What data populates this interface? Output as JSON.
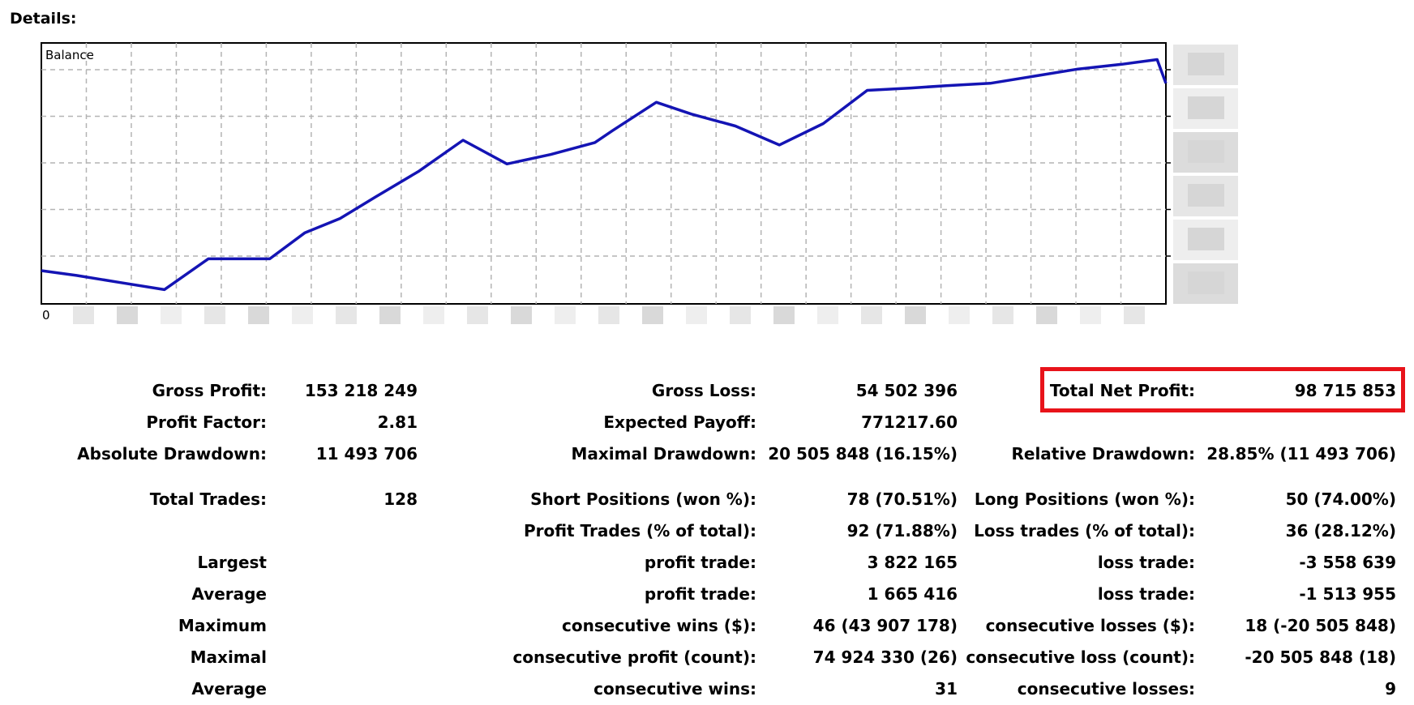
{
  "heading": "Details:",
  "chart_data": {
    "type": "line",
    "title": "Balance",
    "x_origin_label": "0",
    "axis_labels_obscured": true,
    "grid": true,
    "series": [
      {
        "name": "Balance",
        "color": "#1414b4",
        "x": [
          0,
          4,
          9,
          14,
          19,
          21,
          26,
          30,
          34,
          38,
          43,
          48,
          53,
          58,
          63,
          65,
          70,
          74,
          79,
          84,
          89,
          94,
          99,
          103,
          108,
          113,
          118,
          123,
          127,
          128
        ],
        "y": [
          4.4,
          4.2,
          3.9,
          3.6,
          4.9,
          4.9,
          4.9,
          6.0,
          6.6,
          7.5,
          8.6,
          9.9,
          8.9,
          9.3,
          9.8,
          10.3,
          11.5,
          11.0,
          10.5,
          9.7,
          10.6,
          12.0,
          12.1,
          12.2,
          12.3,
          12.6,
          12.9,
          13.1,
          13.3,
          12.3
        ]
      }
    ],
    "ylim": [
      3,
      14
    ]
  },
  "stats": {
    "gross_profit_label": "Gross Profit:",
    "gross_profit_value": "153 218 249",
    "gross_loss_label": "Gross Loss:",
    "gross_loss_value": "54 502 396",
    "total_net_profit_label": "Total Net Profit:",
    "total_net_profit_value": "98 715 853",
    "profit_factor_label": "Profit Factor:",
    "profit_factor_value": "2.81",
    "expected_payoff_label": "Expected Payoff:",
    "expected_payoff_value": "771217.60",
    "absolute_drawdown_label": "Absolute Drawdown:",
    "absolute_drawdown_value": "11 493 706",
    "maximal_drawdown_label": "Maximal Drawdown:",
    "maximal_drawdown_value": "20 505 848 (16.15%)",
    "relative_drawdown_label": "Relative Drawdown:",
    "relative_drawdown_value": "28.85% (11 493 706)",
    "total_trades_label": "Total Trades:",
    "total_trades_value": "128",
    "short_positions_label": "Short Positions (won %):",
    "short_positions_value": "78 (70.51%)",
    "long_positions_label": "Long Positions (won %):",
    "long_positions_value": "50 (74.00%)",
    "profit_trades_label": "Profit Trades (% of total):",
    "profit_trades_value": "92 (71.88%)",
    "loss_trades_label": "Loss trades (% of total):",
    "loss_trades_value": "36 (28.12%)",
    "largest_label": "Largest",
    "largest_profit_label": "profit trade:",
    "largest_profit_value": "3 822 165",
    "largest_loss_label": "loss trade:",
    "largest_loss_value": "-3 558 639",
    "average_label": "Average",
    "average_profit_label": "profit trade:",
    "average_profit_value": "1 665 416",
    "average_loss_label": "loss trade:",
    "average_loss_value": "-1 513 955",
    "maximum_label": "Maximum",
    "max_consec_wins_label": "consecutive wins ($):",
    "max_consec_wins_value": "46 (43 907 178)",
    "max_consec_losses_label": "consecutive losses ($):",
    "max_consec_losses_value": "18 (-20 505 848)",
    "maximal_label": "Maximal",
    "maximal_consec_profit_label": "consecutive profit (count):",
    "maximal_consec_profit_value": "74 924 330 (26)",
    "maximal_consec_loss_label": "consecutive loss (count):",
    "maximal_consec_loss_value": "-20 505 848 (18)",
    "average2_label": "Average",
    "avg_consec_wins_label": "consecutive wins:",
    "avg_consec_wins_value": "31",
    "avg_consec_losses_label": "consecutive losses:",
    "avg_consec_losses_value": "9"
  }
}
